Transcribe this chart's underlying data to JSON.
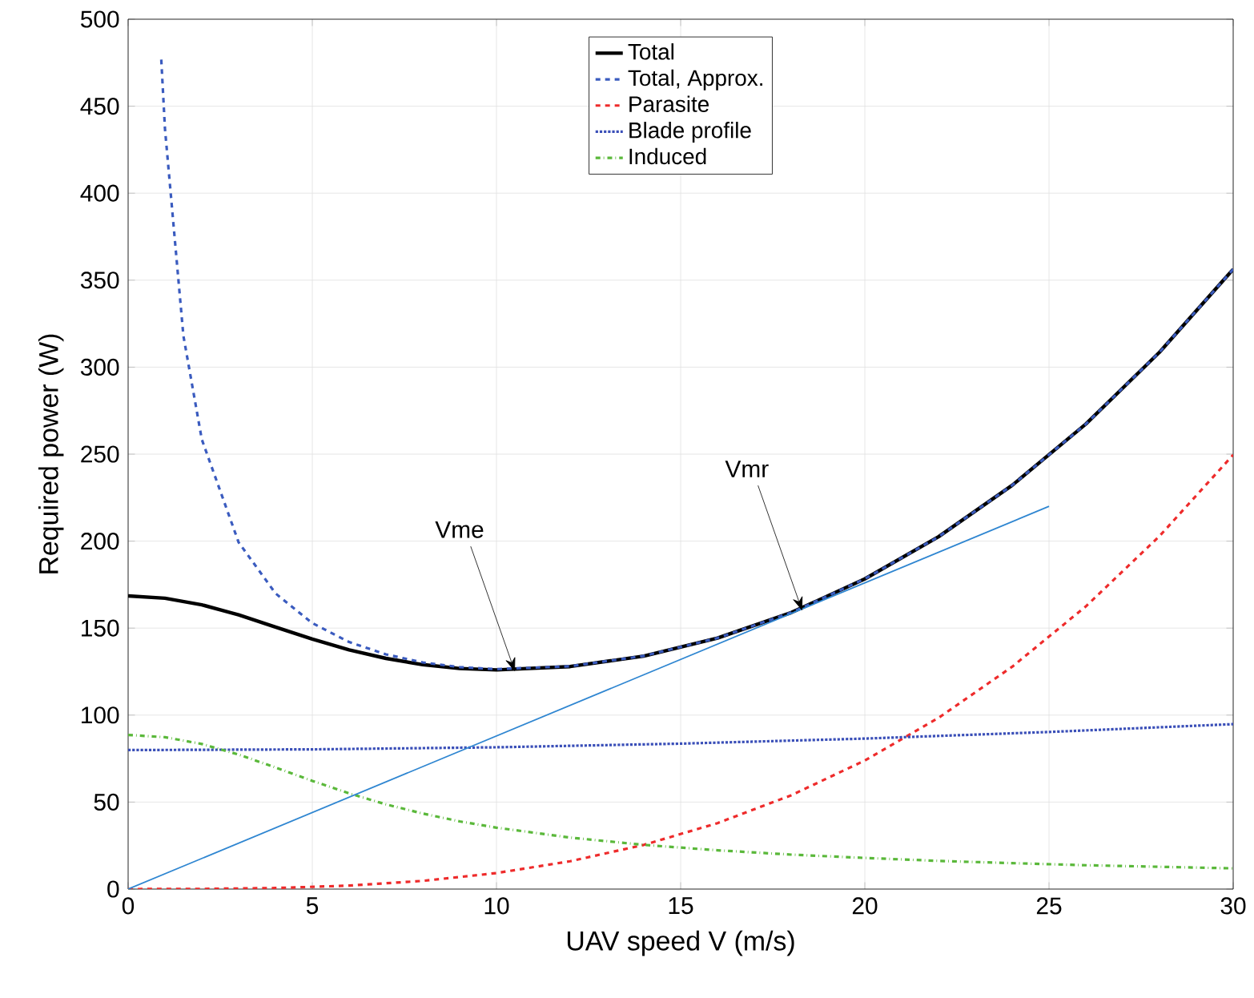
{
  "chart_data": {
    "type": "line",
    "xlabel": "UAV speed V (m/s)",
    "ylabel": "Required power (W)",
    "xlim": [
      0,
      30
    ],
    "ylim": [
      0,
      500
    ],
    "xticks": [
      0,
      5,
      10,
      15,
      20,
      25,
      30
    ],
    "yticks": [
      0,
      50,
      100,
      150,
      200,
      250,
      300,
      350,
      400,
      450,
      500
    ],
    "grid": true,
    "legend": "top",
    "marker": "none",
    "series": [
      {
        "name": "Total",
        "color": "#000000",
        "line_style": "solid",
        "x": [
          0,
          1,
          2,
          3,
          4,
          5,
          6,
          7,
          8,
          9,
          10,
          12,
          14,
          16,
          18,
          20,
          22,
          24,
          26,
          28,
          30
        ],
        "values": [
          168.5,
          167.2,
          163.4,
          157.6,
          150.6,
          143.7,
          137.5,
          132.6,
          129.0,
          126.8,
          126.0,
          127.9,
          133.9,
          144.3,
          158.9,
          178.3,
          202.5,
          232.1,
          267.3,
          308.6,
          356.3
        ]
      },
      {
        "name": "Total, Approx.",
        "color": "#3a5bbf",
        "line_style": "dashed",
        "x": [
          0.9,
          1,
          1.5,
          2,
          3,
          4,
          5,
          6,
          7,
          8,
          9,
          10,
          12,
          14,
          16,
          18,
          20,
          22,
          24,
          26,
          28,
          30
        ],
        "values": [
          476.8,
          437.1,
          318.1,
          258.5,
          199.3,
          170.0,
          152.9,
          142.0,
          134.9,
          130.3,
          127.6,
          126.4,
          128.1,
          134.0,
          144.3,
          158.9,
          178.3,
          202.5,
          232.1,
          267.3,
          308.6,
          356.3
        ]
      },
      {
        "name": "Parasite",
        "color": "#ee2b2b",
        "line_style": "dashed",
        "x": [
          0,
          2,
          4,
          6,
          8,
          10,
          12,
          14,
          16,
          18,
          20,
          22,
          24,
          26,
          28,
          30
        ],
        "values": [
          0,
          0.1,
          0.6,
          2.0,
          4.7,
          9.2,
          16.0,
          25.4,
          37.9,
          53.9,
          73.9,
          98.4,
          127.8,
          162.5,
          202.9,
          249.6
        ]
      },
      {
        "name": "Blade profile",
        "color": "#3a4fb8",
        "line_style": "dotted",
        "x": [
          0,
          5,
          10,
          15,
          20,
          25,
          30
        ],
        "values": [
          79.9,
          80.3,
          81.5,
          83.6,
          86.5,
          90.3,
          94.8
        ]
      },
      {
        "name": "Induced",
        "color": "#5ab83a",
        "line_style": "dashdot",
        "x": [
          0,
          1,
          2,
          3,
          4,
          5,
          6,
          7,
          8,
          9,
          10,
          12,
          14,
          16,
          18,
          20,
          22,
          24,
          26,
          28,
          30
        ],
        "values": [
          88.6,
          87.3,
          83.4,
          77.3,
          69.9,
          62.2,
          55.0,
          48.7,
          43.4,
          38.9,
          35.3,
          29.6,
          25.4,
          22.3,
          19.8,
          17.9,
          16.2,
          14.9,
          13.7,
          12.8,
          11.9
        ]
      },
      {
        "color": "#2f86d1",
        "line_style": "solid",
        "x": [
          0,
          25
        ],
        "values": [
          0,
          220
        ]
      }
    ],
    "annotations": [
      {
        "text": "Vme",
        "x": 10.5,
        "y": 125
      },
      {
        "text": "Vmr",
        "x": 18.3,
        "y": 160
      }
    ]
  }
}
